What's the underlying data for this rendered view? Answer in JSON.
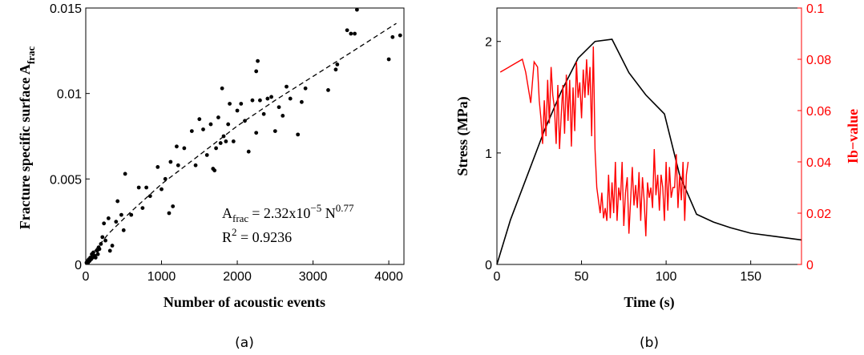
{
  "colors": {
    "axis": "#000000",
    "points": "#000000",
    "fit": "#000000",
    "stress": "#000000",
    "ib": "#ff0000"
  },
  "panel_a": {
    "caption": "(a)",
    "ylabel_main": "Fracture specific surface A",
    "ylabel_sub": "frac",
    "annotation": {
      "line1_lhs": "A",
      "line1_lhs_sub": "frac",
      "line1_eq": "= 2.32x10",
      "line1_exp1": "−5",
      "line1_n": " N",
      "line1_exp2": "0.77",
      "line2_r": "R",
      "line2_exp": "2",
      "line2_val": " = 0.9236"
    }
  },
  "panel_b": {
    "caption": "(b)"
  },
  "chart_data": [
    {
      "type": "scatter",
      "xlabel": "Number of acoustic events",
      "ylabel": "Fracture specific surface A_frac",
      "xlim": [
        0,
        4200
      ],
      "ylim": [
        0,
        0.015
      ],
      "xticks": [
        0,
        1000,
        2000,
        3000,
        4000
      ],
      "xtick_labels": [
        "0",
        "1000",
        "2000",
        "3000",
        "4000"
      ],
      "yticks": [
        0,
        0.005,
        0.01,
        0.015
      ],
      "ytick_labels": [
        "0",
        "0.005",
        "0.01",
        "0.015"
      ],
      "grid": false,
      "series": [
        {
          "kind": "points",
          "x": [
            10,
            20,
            30,
            40,
            50,
            60,
            70,
            80,
            90,
            100,
            120,
            130,
            150,
            160,
            170,
            180,
            200,
            220,
            240,
            260,
            300,
            320,
            350,
            400,
            420,
            470,
            500,
            520,
            600,
            700,
            750,
            800,
            850,
            950,
            1000,
            1050,
            1100,
            1120,
            1150,
            1200,
            1220,
            1300,
            1400,
            1450,
            1500,
            1550,
            1600,
            1650,
            1680,
            1700,
            1720,
            1750,
            1780,
            1800,
            1820,
            1850,
            1880,
            1900,
            1950,
            2000,
            2050,
            2100,
            2150,
            2200,
            2250,
            2250,
            2270,
            2300,
            2350,
            2400,
            2450,
            2500,
            2550,
            2600,
            2650,
            2700,
            2800,
            2850,
            2900,
            3200,
            3300,
            3320,
            3450,
            3500,
            3550,
            3580,
            4000,
            4050,
            4150
          ],
          "y": [
            0.0001,
            0.0002,
            0.0001,
            0.0003,
            0.0002,
            0.0004,
            0.0003,
            0.0006,
            0.0004,
            0.0007,
            0.0005,
            0.0004,
            0.0008,
            0.0006,
            0.001,
            0.0009,
            0.0012,
            0.0016,
            0.0024,
            0.0014,
            0.0027,
            0.0008,
            0.0011,
            0.0025,
            0.0037,
            0.0029,
            0.002,
            0.0053,
            0.0029,
            0.0045,
            0.0033,
            0.0045,
            0.004,
            0.0057,
            0.0044,
            0.005,
            0.003,
            0.006,
            0.0034,
            0.0069,
            0.0058,
            0.0068,
            0.0078,
            0.0058,
            0.0085,
            0.0079,
            0.0064,
            0.0082,
            0.0056,
            0.0055,
            0.0068,
            0.0086,
            0.0071,
            0.0103,
            0.0075,
            0.0072,
            0.0082,
            0.0094,
            0.0072,
            0.009,
            0.0094,
            0.0084,
            0.0066,
            0.0096,
            0.0113,
            0.0077,
            0.0119,
            0.0096,
            0.0088,
            0.0097,
            0.0098,
            0.0078,
            0.0092,
            0.0087,
            0.0104,
            0.0097,
            0.0076,
            0.0095,
            0.0103,
            0.0102,
            0.0114,
            0.0117,
            0.0137,
            0.0135,
            0.0135,
            0.0149,
            0.012,
            0.0133,
            0.0134
          ]
        },
        {
          "kind": "fit",
          "label": "A_frac = 2.32x10^-5 N^0.77",
          "x": [
            0,
            100,
            300,
            600,
            1000,
            1500,
            2000,
            2500,
            3000,
            3500,
            4100
          ],
          "y": [
            0,
            0.0007,
            0.0018,
            0.0031,
            0.0047,
            0.0064,
            0.0081,
            0.0096,
            0.011,
            0.0124,
            0.0141
          ]
        }
      ]
    },
    {
      "type": "line",
      "xlabel": "Time (s)",
      "ylabel": "Stress (MPa)",
      "ylabel_right": "Ib−value",
      "xlim": [
        0,
        180
      ],
      "ylim": [
        0,
        2.3
      ],
      "ylim_right": [
        0,
        0.1
      ],
      "xticks": [
        0,
        50,
        100,
        150
      ],
      "xtick_labels": [
        "0",
        "50",
        "100",
        "150"
      ],
      "yticks": [
        0,
        1,
        2
      ],
      "ytick_labels": [
        "0",
        "1",
        "2"
      ],
      "yticks_right": [
        0,
        0.02,
        0.04,
        0.06,
        0.08,
        0.1
      ],
      "ytick_labels_right": [
        "0",
        "0.02",
        "0.04",
        "0.06",
        "0.08",
        "0.1"
      ],
      "grid": false,
      "series": [
        {
          "name": "Stress (MPa)",
          "axis": "left",
          "color": "#000000",
          "x": [
            0,
            8,
            18,
            28,
            38,
            48,
            58,
            68,
            78,
            88,
            99,
            108,
            118,
            128,
            138,
            150,
            165,
            180
          ],
          "y": [
            0,
            0.4,
            0.8,
            1.2,
            1.55,
            1.85,
            2.0,
            2.02,
            1.72,
            1.52,
            1.35,
            0.8,
            0.45,
            0.38,
            0.33,
            0.28,
            0.25,
            0.22
          ]
        },
        {
          "name": "Ib−value",
          "axis": "right",
          "color": "#ff0000",
          "x": [
            2,
            15,
            17,
            20,
            22,
            24,
            25,
            26,
            27,
            28,
            29,
            30,
            31,
            32,
            33,
            34,
            35,
            36,
            37,
            38,
            39,
            40,
            41,
            42,
            43,
            44,
            45,
            46,
            47,
            48,
            49,
            50,
            51,
            52,
            53,
            54,
            55,
            56,
            57,
            57.5,
            58,
            59,
            60,
            61,
            62,
            63,
            64,
            65,
            66,
            67,
            68,
            69,
            70,
            71,
            72,
            73,
            74,
            75,
            76,
            77,
            78,
            79,
            80,
            81,
            82,
            83,
            84,
            85,
            86,
            87,
            88,
            89,
            90,
            91,
            92,
            93,
            94,
            95,
            96,
            97,
            98,
            99,
            100,
            101,
            102,
            103,
            104,
            105,
            106,
            107,
            108,
            109,
            110,
            111,
            112,
            113
          ],
          "y": [
            0.075,
            0.08,
            0.075,
            0.063,
            0.079,
            0.077,
            0.064,
            0.057,
            0.047,
            0.064,
            0.05,
            0.072,
            0.055,
            0.077,
            0.066,
            0.061,
            0.047,
            0.07,
            0.045,
            0.058,
            0.07,
            0.051,
            0.074,
            0.056,
            0.072,
            0.046,
            0.069,
            0.052,
            0.079,
            0.065,
            0.071,
            0.057,
            0.076,
            0.065,
            0.08,
            0.066,
            0.077,
            0.05,
            0.085,
            0.065,
            0.045,
            0.03,
            0.025,
            0.02,
            0.028,
            0.018,
            0.022,
            0.017,
            0.035,
            0.018,
            0.032,
            0.02,
            0.04,
            0.017,
            0.03,
            0.025,
            0.04,
            0.015,
            0.028,
            0.034,
            0.012,
            0.025,
            0.038,
            0.023,
            0.031,
            0.022,
            0.036,
            0.017,
            0.034,
            0.025,
            0.011,
            0.032,
            0.026,
            0.03,
            0.022,
            0.045,
            0.027,
            0.035,
            0.021,
            0.035,
            0.03,
            0.017,
            0.04,
            0.021,
            0.038,
            0.026,
            0.03,
            0.03,
            0.043,
            0.022,
            0.035,
            0.025,
            0.04,
            0.017,
            0.035,
            0.04
          ]
        }
      ]
    }
  ]
}
